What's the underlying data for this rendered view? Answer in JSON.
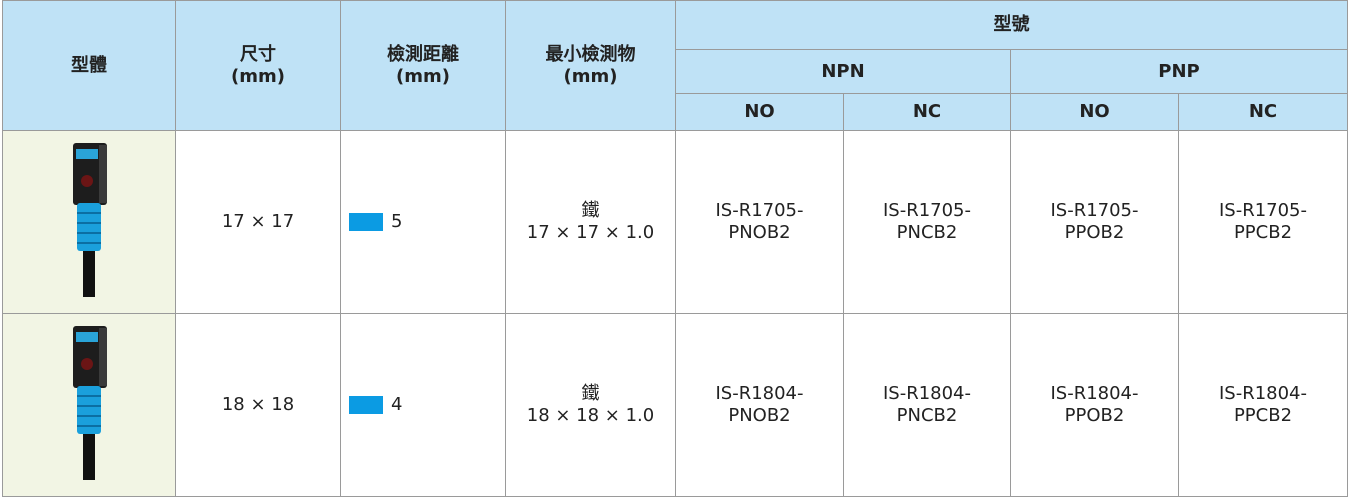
{
  "table": {
    "header": {
      "body": "型體",
      "size": "尺寸",
      "size_unit": "(mm)",
      "distance": "檢測距離",
      "distance_unit": "(mm)",
      "min_object": "最小檢測物",
      "min_object_unit": "(mm)",
      "model": "型號",
      "npn": "NPN",
      "pnp": "PNP",
      "outputs": [
        "NO",
        "NC",
        "NO",
        "NC"
      ]
    },
    "rows": [
      {
        "size": "17 × 17",
        "distance": "5",
        "material": "鐵",
        "object": "17 × 17 × 1.0",
        "models": [
          [
            "IS-R1705-",
            "PNOB2"
          ],
          [
            "IS-R1705-",
            "PNCB2"
          ],
          [
            "IS-R1705-",
            "PPOB2"
          ],
          [
            "IS-R1705-",
            "PPCB2"
          ]
        ]
      },
      {
        "size": "18 × 18",
        "distance": "4",
        "material": "鐵",
        "object": "18 × 18 × 1.0",
        "models": [
          [
            "IS-R1804-",
            "PNOB2"
          ],
          [
            "IS-R1804-",
            "PNCB2"
          ],
          [
            "IS-R1804-",
            "PPOB2"
          ],
          [
            "IS-R1804-",
            "PPCB2"
          ]
        ]
      }
    ]
  }
}
